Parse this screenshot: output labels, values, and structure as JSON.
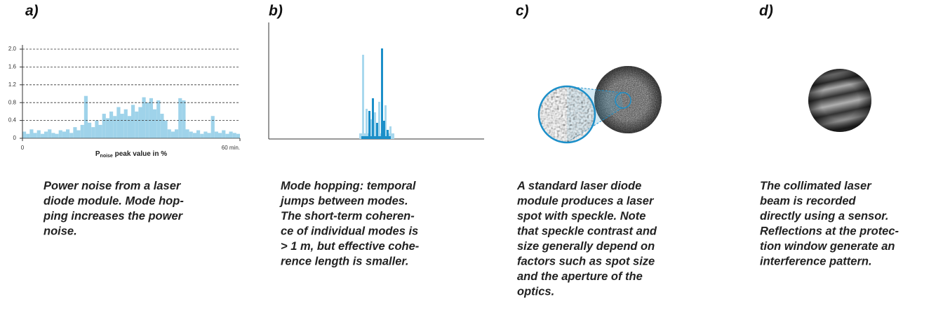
{
  "panels": [
    {
      "label": "a)",
      "caption": [
        "Power noise from a laser",
        "diode module. Mode hop-",
        "ping increases the power",
        "noise."
      ]
    },
    {
      "label": "b)",
      "caption": [
        "Mode hopping: temporal",
        "jumps between modes.",
        "The short-term coheren-",
        "ce of individual modes is",
        "> 1 m, but effective cohe-",
        "rence length is smaller."
      ]
    },
    {
      "label": "c)",
      "caption": [
        "A standard laser diode",
        "module produces a laser",
        "spot with speckle. Note",
        "that speckle contrast and",
        "size generally depend on",
        "factors such as spot size",
        "and the aperture of the",
        "optics."
      ]
    },
    {
      "label": "d)",
      "caption": [
        "The collimated laser",
        "beam is recorded",
        "directly using a sensor.",
        "Reflections at the protec-",
        "tion window generate an",
        "interference pattern."
      ]
    }
  ],
  "chart_data": {
    "type": "bar",
    "color": "#9fd3ea",
    "xlabel": {
      "main": "P",
      "sub": "noise",
      "rest": " peak value in %"
    },
    "x": [
      0,
      1,
      2,
      3,
      4,
      5,
      6,
      7,
      8,
      9,
      10,
      11,
      12,
      13,
      14,
      15,
      16,
      17,
      18,
      19,
      20,
      21,
      22,
      23,
      24,
      25,
      26,
      27,
      28,
      29,
      30,
      31,
      32,
      33,
      34,
      35,
      36,
      37,
      38,
      39,
      40,
      41,
      42,
      43,
      44,
      45,
      46,
      47,
      48,
      49,
      50,
      51,
      52,
      53,
      54,
      55,
      56,
      57,
      58,
      59
    ],
    "values": [
      0.15,
      0.1,
      0.2,
      0.12,
      0.18,
      0.1,
      0.15,
      0.2,
      0.12,
      0.1,
      0.18,
      0.15,
      0.2,
      0.12,
      0.25,
      0.18,
      0.3,
      0.95,
      0.35,
      0.25,
      0.4,
      0.3,
      0.55,
      0.45,
      0.6,
      0.5,
      0.7,
      0.55,
      0.65,
      0.5,
      0.75,
      0.6,
      0.7,
      0.92,
      0.8,
      0.9,
      0.65,
      0.85,
      0.55,
      0.4,
      0.2,
      0.15,
      0.2,
      0.9,
      0.85,
      0.2,
      0.15,
      0.12,
      0.18,
      0.1,
      0.15,
      0.12,
      0.5,
      0.15,
      0.12,
      0.18,
      0.1,
      0.15,
      0.12,
      0.1
    ],
    "xlim": [
      0,
      60
    ],
    "xticks": [
      0,
      {
        "value": 60,
        "label": "60 min."
      }
    ],
    "ylim": [
      0,
      2
    ],
    "yticks": [
      0,
      {
        "value": 0.4,
        "label": "0.4"
      },
      {
        "value": 0.8,
        "label": "0.8"
      },
      {
        "value": 1.2,
        "label": "1.2"
      },
      {
        "value": 1.6,
        "label": "1.6"
      },
      {
        "value": 2,
        "label": "2.0"
      }
    ],
    "grid": true
  }
}
